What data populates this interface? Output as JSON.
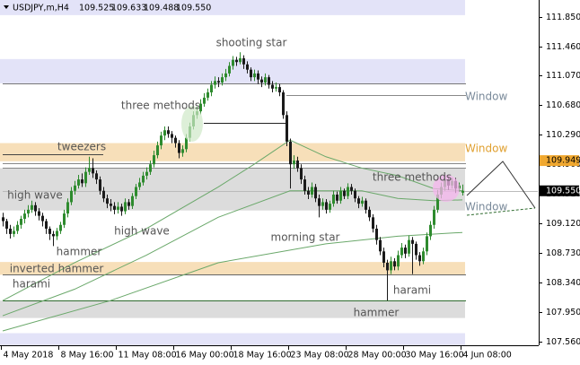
{
  "chart_data": {
    "type": "candlestick",
    "header": {
      "symbol": "USDJPY,m,H4",
      "ohlc": [
        "109.525",
        "109.633",
        "109.488",
        "109.550"
      ]
    },
    "bull_color": "#2e8b2e",
    "bear_color": "#1a1a1a",
    "ylim": [
      107.51,
      112.07
    ],
    "yticks": [
      {
        "value": 111.85,
        "label": "111.850"
      },
      {
        "value": 111.46,
        "label": "111.460"
      },
      {
        "value": 111.07,
        "label": "111.070"
      },
      {
        "value": 110.68,
        "label": "110.680"
      },
      {
        "value": 110.29,
        "label": "110.290"
      },
      {
        "value": 109.9,
        "label": "109.900"
      },
      {
        "value": 109.51,
        "label": "109.510"
      },
      {
        "value": 109.12,
        "label": "109.120"
      },
      {
        "value": 108.73,
        "label": "108.730"
      },
      {
        "value": 108.34,
        "label": "108.340"
      },
      {
        "value": 107.95,
        "label": "107.950"
      },
      {
        "value": 107.56,
        "label": "107.560"
      }
    ],
    "xticks": [
      {
        "value": 0,
        "label": "4 May 2018"
      },
      {
        "value": 16,
        "label": "8 May 16:00"
      },
      {
        "value": 32,
        "label": "11 May 08:00"
      },
      {
        "value": 48,
        "label": "16 May 00:00"
      },
      {
        "value": 64,
        "label": "18 May 16:00"
      },
      {
        "value": 80,
        "label": "23 May 08:00"
      },
      {
        "value": 96,
        "label": "28 May 00:00"
      },
      {
        "value": 112,
        "label": "30 May 16:00"
      },
      {
        "value": 128,
        "label": "4 Jun 08:00"
      }
    ],
    "zones": [
      {
        "from": 111.87,
        "to": 112.07,
        "color": "#e3e3f8"
      },
      {
        "from": 110.97,
        "to": 111.29,
        "color": "#e3e3f8"
      },
      {
        "from": 109.94,
        "to": 110.18,
        "color": "#f7dfb9"
      },
      {
        "from": 109.29,
        "to": 109.85,
        "color": "#dcdcdc"
      },
      {
        "from": 108.44,
        "to": 108.61,
        "color": "#f7dfb9"
      },
      {
        "from": 107.87,
        "to": 108.1,
        "color": "#dcdcdc"
      },
      {
        "from": 107.51,
        "to": 107.67,
        "color": "#e3e3f8"
      }
    ],
    "levels": [
      {
        "price": 110.97,
        "from": 0,
        "to": 129,
        "color": "#777"
      },
      {
        "price": 110.81,
        "from": 79,
        "to": 129,
        "color": "#888"
      },
      {
        "price": 110.45,
        "from": 56,
        "to": 79,
        "color": "#222"
      },
      {
        "price": 110.03,
        "from": 0,
        "to": 28,
        "color": "#444"
      },
      {
        "price": 109.92,
        "from": 0,
        "to": 129,
        "color": "#888"
      },
      {
        "price": 109.85,
        "from": 0,
        "to": 129,
        "color": "#888"
      },
      {
        "price": 109.55,
        "from": 0,
        "to": 149,
        "color": "#bbb"
      },
      {
        "price": 108.44,
        "from": 0,
        "to": 129,
        "color": "#666"
      },
      {
        "price": 108.1,
        "from": 0,
        "to": 129,
        "color": "#2e6b2e"
      }
    ],
    "moving_averages": [
      {
        "color": "#6aa86a",
        "x": [
          0,
          20,
          40,
          60,
          70,
          80,
          90,
          100,
          110,
          120,
          128
        ],
        "values": [
          108.1,
          108.6,
          109.05,
          109.6,
          109.9,
          110.22,
          110.0,
          109.85,
          109.75,
          109.58,
          109.55
        ]
      },
      {
        "color": "#6aa86a",
        "x": [
          0,
          20,
          40,
          60,
          80,
          100,
          110,
          120,
          128
        ],
        "values": [
          107.9,
          108.25,
          108.7,
          109.2,
          109.55,
          109.55,
          109.45,
          109.42,
          109.43
        ]
      },
      {
        "color": "#6aa86a",
        "x": [
          0,
          30,
          60,
          90,
          110,
          128
        ],
        "values": [
          107.7,
          108.1,
          108.6,
          108.85,
          108.95,
          109.0
        ]
      }
    ],
    "price_tags": [
      {
        "value": 109.949,
        "label": "109.949",
        "color": "#f0a830",
        "text_color": "#000"
      },
      {
        "value": 109.55,
        "label": "109.550",
        "color": "#000",
        "text_color": "#fff"
      }
    ],
    "annotations": [
      "shooting star",
      "three methods",
      "tweezers",
      "high wave",
      "high wave",
      "hammer",
      "inverted hammer",
      "harami",
      "morning star",
      "three methods",
      "harami",
      "hammer",
      "Window",
      "Window",
      "Window"
    ],
    "candles": [
      [
        109.2,
        109.26,
        109.08,
        109.15
      ],
      [
        109.15,
        109.18,
        108.98,
        109.05
      ],
      [
        109.05,
        109.1,
        108.92,
        108.98
      ],
      [
        108.98,
        109.08,
        108.94,
        109.02
      ],
      [
        109.02,
        109.15,
        108.98,
        109.1
      ],
      [
        109.1,
        109.22,
        109.05,
        109.18
      ],
      [
        109.18,
        109.3,
        109.12,
        109.25
      ],
      [
        109.25,
        109.36,
        109.2,
        109.3
      ],
      [
        109.3,
        109.42,
        109.26,
        109.36
      ],
      [
        109.36,
        109.4,
        109.22,
        109.28
      ],
      [
        109.28,
        109.32,
        109.16,
        109.22
      ],
      [
        109.22,
        109.26,
        109.08,
        109.15
      ],
      [
        109.15,
        109.18,
        108.98,
        109.05
      ],
      [
        109.05,
        109.08,
        108.9,
        108.98
      ],
      [
        108.98,
        109.02,
        108.82,
        108.95
      ],
      [
        108.95,
        109.06,
        108.9,
        109.02
      ],
      [
        109.02,
        109.14,
        108.98,
        109.1
      ],
      [
        109.1,
        109.3,
        109.06,
        109.25
      ],
      [
        109.25,
        109.45,
        109.2,
        109.4
      ],
      [
        109.4,
        109.6,
        109.36,
        109.55
      ],
      [
        109.55,
        109.68,
        109.5,
        109.62
      ],
      [
        109.62,
        109.76,
        109.58,
        109.7
      ],
      [
        109.7,
        109.78,
        109.6,
        109.65
      ],
      [
        109.65,
        109.86,
        109.6,
        109.8
      ],
      [
        109.8,
        110.0,
        109.76,
        109.85
      ],
      [
        109.85,
        109.98,
        109.72,
        109.78
      ],
      [
        109.78,
        109.82,
        109.64,
        109.7
      ],
      [
        109.7,
        109.74,
        109.5,
        109.55
      ],
      [
        109.55,
        109.6,
        109.4,
        109.45
      ],
      [
        109.45,
        109.5,
        109.32,
        109.38
      ],
      [
        109.38,
        109.44,
        109.28,
        109.35
      ],
      [
        109.35,
        109.4,
        109.24,
        109.3
      ],
      [
        109.3,
        109.4,
        109.25,
        109.34
      ],
      [
        109.34,
        109.38,
        109.22,
        109.28
      ],
      [
        109.28,
        109.45,
        109.24,
        109.4
      ],
      [
        109.4,
        109.44,
        109.3,
        109.35
      ],
      [
        109.35,
        109.52,
        109.31,
        109.48
      ],
      [
        109.48,
        109.64,
        109.44,
        109.6
      ],
      [
        109.6,
        109.72,
        109.56,
        109.66
      ],
      [
        109.66,
        109.8,
        109.62,
        109.75
      ],
      [
        109.75,
        109.86,
        109.7,
        109.8
      ],
      [
        109.8,
        109.95,
        109.76,
        109.9
      ],
      [
        109.9,
        110.08,
        109.86,
        110.02
      ],
      [
        110.02,
        110.2,
        109.98,
        110.15
      ],
      [
        110.15,
        110.33,
        110.1,
        110.28
      ],
      [
        110.28,
        110.4,
        110.22,
        110.35
      ],
      [
        110.35,
        110.4,
        110.25,
        110.3
      ],
      [
        110.3,
        110.34,
        110.18,
        110.25
      ],
      [
        110.25,
        110.28,
        110.12,
        110.18
      ],
      [
        110.18,
        110.22,
        109.98,
        110.05
      ],
      [
        110.05,
        110.15,
        110.0,
        110.1
      ],
      [
        110.1,
        110.3,
        110.06,
        110.25
      ],
      [
        110.25,
        110.45,
        110.2,
        110.4
      ],
      [
        110.4,
        110.6,
        110.36,
        110.55
      ],
      [
        110.55,
        110.66,
        110.5,
        110.6
      ],
      [
        110.6,
        110.76,
        110.56,
        110.7
      ],
      [
        110.7,
        110.84,
        110.66,
        110.78
      ],
      [
        110.78,
        110.9,
        110.74,
        110.85
      ],
      [
        110.85,
        111.0,
        110.8,
        110.95
      ],
      [
        110.95,
        111.06,
        110.9,
        111.0
      ],
      [
        111.0,
        111.05,
        110.92,
        110.98
      ],
      [
        110.98,
        111.1,
        110.94,
        111.05
      ],
      [
        111.05,
        111.16,
        111.0,
        111.1
      ],
      [
        111.1,
        111.25,
        111.06,
        111.2
      ],
      [
        111.2,
        111.33,
        111.15,
        111.28
      ],
      [
        111.28,
        111.32,
        111.2,
        111.25
      ],
      [
        111.25,
        111.38,
        111.22,
        111.3
      ],
      [
        111.3,
        111.34,
        111.16,
        111.22
      ],
      [
        111.22,
        111.26,
        111.1,
        111.15
      ],
      [
        111.15,
        111.18,
        111.0,
        111.05
      ],
      [
        111.05,
        111.15,
        111.0,
        111.1
      ],
      [
        111.1,
        111.14,
        110.96,
        111.02
      ],
      [
        111.02,
        111.06,
        110.92,
        110.98
      ],
      [
        110.98,
        111.1,
        110.94,
        111.05
      ],
      [
        111.05,
        111.08,
        110.9,
        110.95
      ],
      [
        110.95,
        111.0,
        110.85,
        110.9
      ],
      [
        110.9,
        110.98,
        110.86,
        110.92
      ],
      [
        110.92,
        110.96,
        110.8,
        110.85
      ],
      [
        110.85,
        110.88,
        110.5,
        110.55
      ],
      [
        110.55,
        110.6,
        110.14,
        110.2
      ],
      [
        110.2,
        110.24,
        109.58,
        109.9
      ],
      [
        109.9,
        110.02,
        109.84,
        109.95
      ],
      [
        109.95,
        110.0,
        109.8,
        109.85
      ],
      [
        109.85,
        109.9,
        109.64,
        109.7
      ],
      [
        109.7,
        109.75,
        109.5,
        109.55
      ],
      [
        109.55,
        109.6,
        109.44,
        109.5
      ],
      [
        109.5,
        109.66,
        109.46,
        109.6
      ],
      [
        109.6,
        109.64,
        109.4,
        109.45
      ],
      [
        109.45,
        109.5,
        109.2,
        109.35
      ],
      [
        109.35,
        109.45,
        109.3,
        109.4
      ],
      [
        109.4,
        109.44,
        109.25,
        109.3
      ],
      [
        109.3,
        109.42,
        109.26,
        109.38
      ],
      [
        109.38,
        109.55,
        109.34,
        109.5
      ],
      [
        109.5,
        109.54,
        109.38,
        109.42
      ],
      [
        109.42,
        109.6,
        109.38,
        109.55
      ],
      [
        109.55,
        109.58,
        109.44,
        109.48
      ],
      [
        109.48,
        109.65,
        109.44,
        109.6
      ],
      [
        109.6,
        109.64,
        109.5,
        109.55
      ],
      [
        109.55,
        109.58,
        109.4,
        109.45
      ],
      [
        109.45,
        109.48,
        109.32,
        109.38
      ],
      [
        109.38,
        109.47,
        109.34,
        109.42
      ],
      [
        109.42,
        109.45,
        109.25,
        109.3
      ],
      [
        109.3,
        109.34,
        109.15,
        109.2
      ],
      [
        109.2,
        109.24,
        109.0,
        109.05
      ],
      [
        109.05,
        109.1,
        108.84,
        108.9
      ],
      [
        108.9,
        108.94,
        108.7,
        108.75
      ],
      [
        108.75,
        108.8,
        108.54,
        108.6
      ],
      [
        108.6,
        108.64,
        108.1,
        108.5
      ],
      [
        108.5,
        108.68,
        108.45,
        108.62
      ],
      [
        108.62,
        108.66,
        108.5,
        108.55
      ],
      [
        108.55,
        108.76,
        108.5,
        108.7
      ],
      [
        108.7,
        108.86,
        108.66,
        108.8
      ],
      [
        108.8,
        108.84,
        108.66,
        108.72
      ],
      [
        108.72,
        108.96,
        108.68,
        108.9
      ],
      [
        108.9,
        108.94,
        108.45,
        108.85
      ],
      [
        108.85,
        108.88,
        108.64,
        108.7
      ],
      [
        108.7,
        108.74,
        108.56,
        108.62
      ],
      [
        108.62,
        108.8,
        108.58,
        108.75
      ],
      [
        108.75,
        109.0,
        108.7,
        108.95
      ],
      [
        108.95,
        109.15,
        108.9,
        109.1
      ],
      [
        109.1,
        109.35,
        109.05,
        109.3
      ],
      [
        109.3,
        109.56,
        109.26,
        109.5
      ],
      [
        109.5,
        109.66,
        109.45,
        109.6
      ],
      [
        109.6,
        109.76,
        109.55,
        109.7
      ],
      [
        109.7,
        109.74,
        109.56,
        109.62
      ],
      [
        109.62,
        109.72,
        109.58,
        109.68
      ],
      [
        109.68,
        109.72,
        109.52,
        109.58
      ],
      [
        109.58,
        109.66,
        109.54,
        109.62
      ],
      [
        109.525,
        109.633,
        109.488,
        109.55
      ]
    ]
  }
}
